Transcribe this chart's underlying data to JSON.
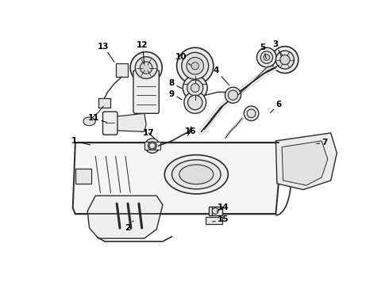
{
  "background_color": "#ffffff",
  "line_color": "#2a2a2a",
  "figsize": [
    4.9,
    3.6
  ],
  "dpi": 100,
  "annotations": [
    [
      "13",
      88,
      20,
      107,
      47
    ],
    [
      "12",
      152,
      18,
      155,
      50
    ],
    [
      "10",
      215,
      38,
      232,
      52
    ],
    [
      "8",
      200,
      80,
      218,
      90
    ],
    [
      "9",
      200,
      98,
      218,
      108
    ],
    [
      "4",
      273,
      60,
      295,
      85
    ],
    [
      "5",
      349,
      22,
      355,
      42
    ],
    [
      "3",
      370,
      16,
      380,
      38
    ],
    [
      "6",
      375,
      115,
      360,
      130
    ],
    [
      "7",
      450,
      178,
      435,
      180
    ],
    [
      "11",
      72,
      138,
      95,
      145
    ],
    [
      "17",
      162,
      162,
      173,
      172
    ],
    [
      "16",
      230,
      160,
      225,
      168
    ],
    [
      "1",
      40,
      175,
      68,
      182
    ],
    [
      "2",
      128,
      318,
      138,
      305
    ],
    [
      "14",
      284,
      284,
      272,
      292
    ],
    [
      "15",
      284,
      304,
      265,
      308
    ]
  ]
}
